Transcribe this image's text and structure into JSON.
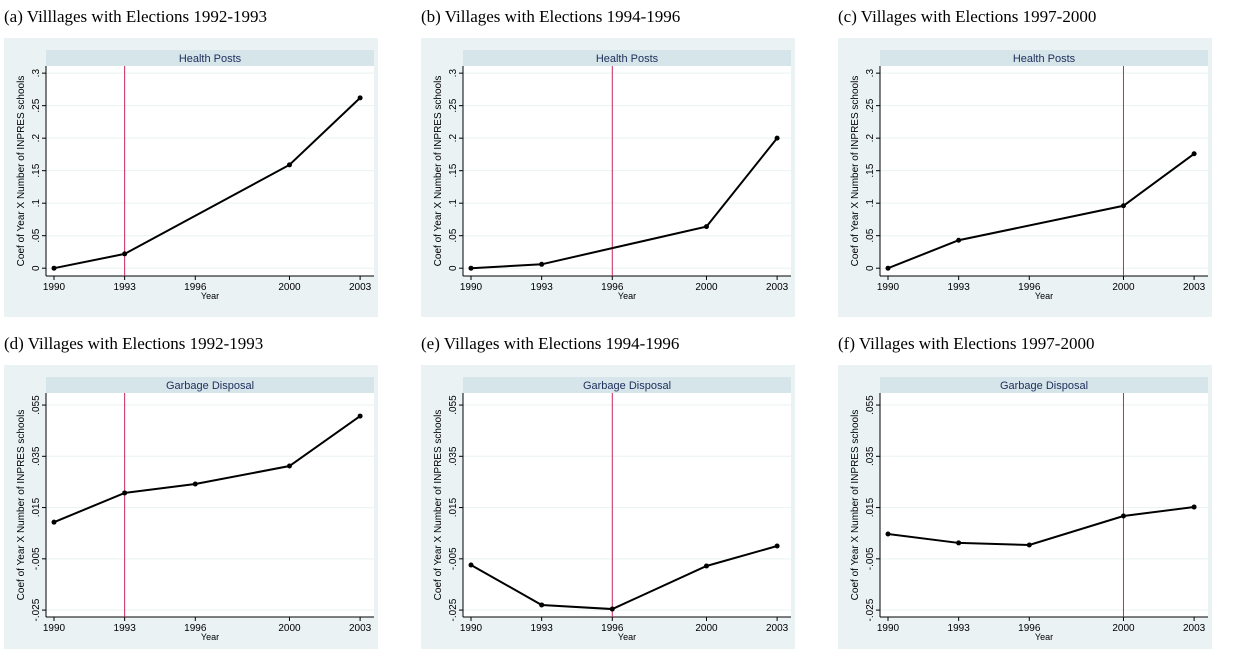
{
  "chart_data": [
    {
      "type": "line",
      "caption": "(a) Villlages with Elections 1992-1993",
      "title": "Health Posts",
      "ylabel": "Coef of Year X Number of INPRES schools",
      "xlabel": "Year",
      "x": [
        1990,
        1993,
        2000,
        2003
      ],
      "values": [
        0,
        0.022,
        0.159,
        0.262
      ],
      "color": "#000000",
      "vline": 1993,
      "vline_color": "#c8285a",
      "xlim": [
        1989.66,
        2003.59
      ],
      "xticks": [
        1990,
        1993,
        1996,
        2000,
        2003
      ],
      "ylim": [
        -0.012,
        0.311
      ],
      "yticks": [
        0,
        {
          "value": 0.05,
          "label": ".05"
        },
        {
          "value": 0.1,
          "label": ".1"
        },
        {
          "value": 0.15,
          "label": ".15"
        },
        {
          "value": 0.2,
          "label": ".2"
        },
        {
          "value": 0.25,
          "label": ".25"
        },
        {
          "value": 0.3,
          "label": ".3"
        }
      ],
      "grid": true
    },
    {
      "type": "line",
      "caption": "(b) Villages with Elections 1994-1996",
      "title": "Health Posts",
      "ylabel": "Coef of Year X Number of INPRES schools",
      "xlabel": "Year",
      "x": [
        1990,
        1993,
        2000,
        2003
      ],
      "values": [
        0,
        0.006,
        0.064,
        0.2
      ],
      "color": "#000000",
      "vline": 1996,
      "vline_color": "#c8285a",
      "xlim": [
        1989.66,
        2003.59
      ],
      "xticks": [
        1990,
        1993,
        1996,
        2000,
        2003
      ],
      "ylim": [
        -0.012,
        0.311
      ],
      "yticks": [
        0,
        {
          "value": 0.05,
          "label": ".05"
        },
        {
          "value": 0.1,
          "label": ".1"
        },
        {
          "value": 0.15,
          "label": ".15"
        },
        {
          "value": 0.2,
          "label": ".2"
        },
        {
          "value": 0.25,
          "label": ".25"
        },
        {
          "value": 0.3,
          "label": ".3"
        }
      ],
      "grid": true
    },
    {
      "type": "line",
      "caption": "(c) Villages with Elections 1997-2000",
      "title": "Health Posts",
      "ylabel": "Coef of Year X Number of INPRES schools",
      "xlabel": "Year",
      "x": [
        1990,
        1993,
        2000,
        2003
      ],
      "values": [
        0,
        0.043,
        0.096,
        0.176
      ],
      "color": "#000000",
      "vline": 2000,
      "vline_color": "#c8285a",
      "xlim": [
        1989.66,
        2003.59
      ],
      "xticks": [
        1990,
        1993,
        1996,
        2000,
        2003
      ],
      "ylim": [
        -0.012,
        0.311
      ],
      "yticks": [
        0,
        {
          "value": 0.05,
          "label": ".05"
        },
        {
          "value": 0.1,
          "label": ".1"
        },
        {
          "value": 0.15,
          "label": ".15"
        },
        {
          "value": 0.2,
          "label": ".2"
        },
        {
          "value": 0.25,
          "label": ".25"
        },
        {
          "value": 0.3,
          "label": ".3"
        }
      ],
      "grid": true
    },
    {
      "type": "line",
      "caption": "(d) Villages with Elections 1992-1993",
      "title": "Garbage Disposal",
      "ylabel": "Coef of Year X Number of INPRES schools",
      "xlabel": "Year",
      "x": [
        1990,
        1993,
        1996,
        2000,
        2003
      ],
      "values": [
        0.0093,
        0.0207,
        0.0242,
        0.0312,
        0.0507
      ],
      "color": "#000000",
      "vline": 1993,
      "vline_color": "#c8285a",
      "xlim": [
        1989.66,
        2003.59
      ],
      "xticks": [
        1990,
        1993,
        1996,
        2000,
        2003
      ],
      "ylim": [
        -0.0277,
        0.0597
      ],
      "yticks": [
        {
          "value": -0.025,
          "label": "-.025"
        },
        {
          "value": -0.005,
          "label": "-.005"
        },
        {
          "value": 0.015,
          "label": ".015"
        },
        {
          "value": 0.035,
          "label": ".035"
        },
        {
          "value": 0.055,
          "label": ".055"
        }
      ],
      "grid": true
    },
    {
      "type": "line",
      "caption": "(e) Villages with Elections 1994-1996",
      "title": "Garbage Disposal",
      "ylabel": "Coef of Year X Number of INPRES schools",
      "xlabel": "Year",
      "x": [
        1990,
        1993,
        1996,
        2000,
        2003
      ],
      "values": [
        -0.0074,
        -0.023,
        -0.0246,
        -0.0078,
        0.0
      ],
      "color": "#000000",
      "vline": 1996,
      "vline_color": "#c8285a",
      "xlim": [
        1989.66,
        2003.59
      ],
      "xticks": [
        1990,
        1993,
        1996,
        2000,
        2003
      ],
      "ylim": [
        -0.0277,
        0.0597
      ],
      "yticks": [
        {
          "value": -0.025,
          "label": "-.025"
        },
        {
          "value": -0.005,
          "label": "-.005"
        },
        {
          "value": 0.015,
          "label": ".015"
        },
        {
          "value": 0.035,
          "label": ".035"
        },
        {
          "value": 0.055,
          "label": ".055"
        }
      ],
      "grid": true
    },
    {
      "type": "line",
      "caption": "(f) Villages with Elections 1997-2000",
      "title": "Garbage Disposal",
      "ylabel": "Coef of Year X Number of INPRES schools",
      "xlabel": "Year",
      "x": [
        1990,
        1993,
        1996,
        2000,
        2003
      ],
      "values": [
        0.0047,
        0.0012,
        0.0004,
        0.0117,
        0.0152
      ],
      "color": "#000000",
      "vline": 2000,
      "vline_color": "#c8285a",
      "xlim": [
        1989.66,
        2003.59
      ],
      "xticks": [
        1990,
        1993,
        1996,
        2000,
        2003
      ],
      "ylim": [
        -0.0277,
        0.0597
      ],
      "yticks": [
        {
          "value": -0.025,
          "label": "-.025"
        },
        {
          "value": -0.005,
          "label": "-.005"
        },
        {
          "value": 0.015,
          "label": ".015"
        },
        {
          "value": 0.035,
          "label": ".035"
        },
        {
          "value": 0.055,
          "label": ".055"
        }
      ],
      "grid": true
    }
  ]
}
